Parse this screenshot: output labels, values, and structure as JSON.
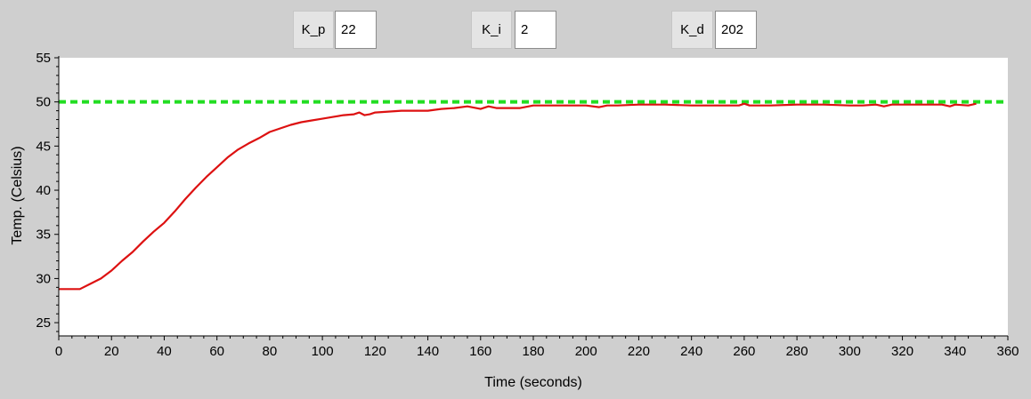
{
  "controls": {
    "kp": {
      "label": "K_p",
      "value": "22"
    },
    "ki": {
      "label": "K_i",
      "value": "2"
    },
    "kd": {
      "label": "K_d",
      "value": "202"
    }
  },
  "chart_data": {
    "type": "line",
    "title": "",
    "xlabel": "Time (seconds)",
    "ylabel": "Temp. (Celsius)",
    "xlim": [
      0,
      360
    ],
    "ylim": [
      23.5,
      55
    ],
    "x_ticks": [
      0,
      20,
      40,
      60,
      80,
      100,
      120,
      140,
      160,
      180,
      200,
      220,
      240,
      260,
      280,
      300,
      320,
      340,
      360
    ],
    "y_ticks": [
      25,
      30,
      35,
      40,
      45,
      50,
      55
    ],
    "grid": false,
    "colors": {
      "setpoint": "#22dd22",
      "temperature": "#dd1111",
      "plot_background": "#ffffff",
      "window_background": "#cfcfcf"
    },
    "setpoint": {
      "value": 50,
      "style": "dashed"
    },
    "series": [
      {
        "x": [
          0,
          8,
          12,
          16,
          20,
          24,
          28,
          32,
          36,
          40,
          44,
          48,
          52,
          56,
          60,
          64,
          68,
          72,
          76,
          80,
          84,
          88,
          92,
          96,
          100,
          104,
          108,
          112,
          114,
          116,
          118,
          120,
          125,
          130,
          135,
          140,
          145,
          150,
          155,
          160,
          163,
          166,
          170,
          175,
          180,
          190,
          200,
          205,
          208,
          212,
          220,
          230,
          240,
          250,
          258,
          260,
          262,
          270,
          280,
          290,
          300,
          305,
          310,
          313,
          316,
          320,
          330,
          335,
          338,
          340,
          345,
          348
        ],
        "y": [
          28.8,
          28.8,
          29.4,
          30.0,
          30.9,
          32.0,
          33.0,
          34.2,
          35.3,
          36.3,
          37.6,
          39.0,
          40.3,
          41.5,
          42.6,
          43.7,
          44.6,
          45.3,
          45.9,
          46.6,
          47.0,
          47.4,
          47.7,
          47.9,
          48.1,
          48.3,
          48.5,
          48.6,
          48.8,
          48.5,
          48.6,
          48.8,
          48.9,
          49.0,
          49.0,
          49.0,
          49.2,
          49.3,
          49.5,
          49.2,
          49.5,
          49.3,
          49.3,
          49.3,
          49.6,
          49.6,
          49.6,
          49.4,
          49.6,
          49.6,
          49.7,
          49.7,
          49.6,
          49.6,
          49.6,
          49.8,
          49.6,
          49.6,
          49.7,
          49.7,
          49.6,
          49.6,
          49.7,
          49.5,
          49.7,
          49.7,
          49.7,
          49.7,
          49.5,
          49.7,
          49.6,
          49.8
        ]
      }
    ]
  }
}
